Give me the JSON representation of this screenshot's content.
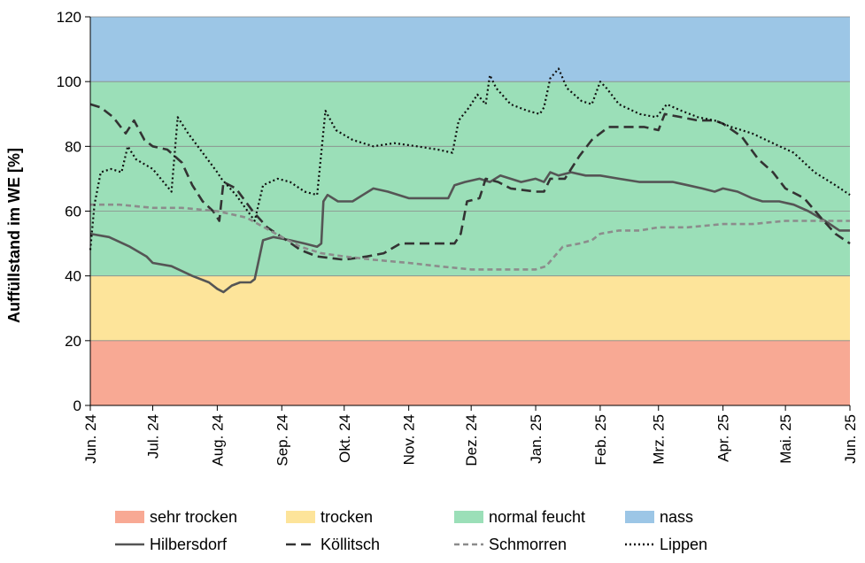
{
  "chart_data": {
    "type": "line",
    "ylabel": "Auffüllstand im WE [%]",
    "xlabel": "",
    "ylim": [
      0,
      120
    ],
    "yticks": [
      0,
      20,
      40,
      60,
      80,
      100,
      120
    ],
    "x_range": [
      "2024-06-01",
      "2025-06-01"
    ],
    "xtick_dates": [
      "2024-06-01",
      "2024-07-01",
      "2024-08-01",
      "2024-09-01",
      "2024-10-01",
      "2024-11-01",
      "2024-12-01",
      "2025-01-01",
      "2025-02-01",
      "2025-03-01",
      "2025-04-01",
      "2025-05-01",
      "2025-06-01"
    ],
    "xtick_labels": [
      "Jun. 24",
      "Jul. 24",
      "Aug. 24",
      "Sep. 24",
      "Okt. 24",
      "Nov. 24",
      "Dez. 24",
      "Jan. 25",
      "Feb. 25",
      "Mrz. 25",
      "Apr. 25",
      "Mai. 25",
      "Jun. 25"
    ],
    "bands": [
      {
        "name": "sehr trocken",
        "from": 0,
        "to": 20,
        "color": "#f8a994"
      },
      {
        "name": "trocken",
        "from": 20,
        "to": 40,
        "color": "#fde49a"
      },
      {
        "name": "normal feucht",
        "from": 40,
        "to": 100,
        "color": "#9bdfb8"
      },
      {
        "name": "nass",
        "from": 100,
        "to": 120,
        "color": "#9cc6e6"
      }
    ],
    "legend_position": "bottom",
    "series": [
      {
        "name": "Hilbersdorf",
        "color": "#555555",
        "dash": "solid",
        "points": [
          [
            "2024-06-01",
            53
          ],
          [
            "2024-06-10",
            52
          ],
          [
            "2024-06-20",
            49
          ],
          [
            "2024-06-28",
            46
          ],
          [
            "2024-07-01",
            44
          ],
          [
            "2024-07-10",
            43
          ],
          [
            "2024-07-20",
            40
          ],
          [
            "2024-07-28",
            38
          ],
          [
            "2024-08-01",
            36
          ],
          [
            "2024-08-04",
            35
          ],
          [
            "2024-08-08",
            37
          ],
          [
            "2024-08-12",
            38
          ],
          [
            "2024-08-17",
            38
          ],
          [
            "2024-08-19",
            39
          ],
          [
            "2024-08-21",
            45
          ],
          [
            "2024-08-23",
            51
          ],
          [
            "2024-08-28",
            52
          ],
          [
            "2024-09-05",
            51
          ],
          [
            "2024-09-12",
            50
          ],
          [
            "2024-09-18",
            49
          ],
          [
            "2024-09-20",
            50
          ],
          [
            "2024-09-21",
            63
          ],
          [
            "2024-09-23",
            65
          ],
          [
            "2024-09-28",
            63
          ],
          [
            "2024-10-05",
            63
          ],
          [
            "2024-10-10",
            65
          ],
          [
            "2024-10-15",
            67
          ],
          [
            "2024-10-22",
            66
          ],
          [
            "2024-11-01",
            64
          ],
          [
            "2024-11-10",
            64
          ],
          [
            "2024-11-18",
            64
          ],
          [
            "2024-11-20",
            64
          ],
          [
            "2024-11-23",
            68
          ],
          [
            "2024-11-28",
            69
          ],
          [
            "2024-12-05",
            70
          ],
          [
            "2024-12-10",
            69
          ],
          [
            "2024-12-15",
            71
          ],
          [
            "2024-12-25",
            69
          ],
          [
            "2025-01-01",
            70
          ],
          [
            "2025-01-05",
            69
          ],
          [
            "2025-01-08",
            72
          ],
          [
            "2025-01-12",
            71
          ],
          [
            "2025-01-18",
            72
          ],
          [
            "2025-01-25",
            71
          ],
          [
            "2025-02-01",
            71
          ],
          [
            "2025-02-10",
            70
          ],
          [
            "2025-02-20",
            69
          ],
          [
            "2025-03-01",
            69
          ],
          [
            "2025-03-08",
            69
          ],
          [
            "2025-03-15",
            68
          ],
          [
            "2025-03-22",
            67
          ],
          [
            "2025-03-28",
            66
          ],
          [
            "2025-04-01",
            67
          ],
          [
            "2025-04-08",
            66
          ],
          [
            "2025-04-15",
            64
          ],
          [
            "2025-04-20",
            63
          ],
          [
            "2025-04-28",
            63
          ],
          [
            "2025-05-05",
            62
          ],
          [
            "2025-05-12",
            60
          ],
          [
            "2025-05-20",
            57
          ],
          [
            "2025-05-27",
            54
          ],
          [
            "2025-06-01",
            54
          ]
        ]
      },
      {
        "name": "Köllitsch",
        "color": "#333333",
        "dash": "dashed",
        "points": [
          [
            "2024-06-01",
            93
          ],
          [
            "2024-06-06",
            92
          ],
          [
            "2024-06-12",
            89
          ],
          [
            "2024-06-18",
            84
          ],
          [
            "2024-06-22",
            88
          ],
          [
            "2024-06-27",
            82
          ],
          [
            "2024-07-01",
            80
          ],
          [
            "2024-07-08",
            79
          ],
          [
            "2024-07-15",
            75
          ],
          [
            "2024-07-20",
            68
          ],
          [
            "2024-07-25",
            63
          ],
          [
            "2024-07-30",
            60
          ],
          [
            "2024-08-02",
            57
          ],
          [
            "2024-08-04",
            69
          ],
          [
            "2024-08-10",
            67
          ],
          [
            "2024-08-18",
            60
          ],
          [
            "2024-08-25",
            55
          ],
          [
            "2024-09-01",
            52
          ],
          [
            "2024-09-10",
            48
          ],
          [
            "2024-09-18",
            46
          ],
          [
            "2024-10-01",
            45
          ],
          [
            "2024-10-12",
            46
          ],
          [
            "2024-10-20",
            47
          ],
          [
            "2024-10-28",
            50
          ],
          [
            "2024-11-05",
            50
          ],
          [
            "2024-11-15",
            50
          ],
          [
            "2024-11-23",
            50
          ],
          [
            "2024-11-26",
            53
          ],
          [
            "2024-11-29",
            63
          ],
          [
            "2024-12-05",
            64
          ],
          [
            "2024-12-08",
            70
          ],
          [
            "2024-12-14",
            69
          ],
          [
            "2024-12-20",
            67
          ],
          [
            "2025-01-01",
            66
          ],
          [
            "2025-01-05",
            66
          ],
          [
            "2025-01-08",
            70
          ],
          [
            "2025-01-15",
            70
          ],
          [
            "2025-01-22",
            77
          ],
          [
            "2025-01-28",
            82
          ],
          [
            "2025-02-05",
            86
          ],
          [
            "2025-02-15",
            86
          ],
          [
            "2025-02-22",
            86
          ],
          [
            "2025-03-01",
            85
          ],
          [
            "2025-03-04",
            90
          ],
          [
            "2025-03-12",
            89
          ],
          [
            "2025-03-20",
            88
          ],
          [
            "2025-03-28",
            88
          ],
          [
            "2025-04-01",
            87
          ],
          [
            "2025-04-10",
            83
          ],
          [
            "2025-04-18",
            76
          ],
          [
            "2025-04-25",
            72
          ],
          [
            "2025-05-01",
            67
          ],
          [
            "2025-05-10",
            64
          ],
          [
            "2025-05-18",
            58
          ],
          [
            "2025-05-25",
            53
          ],
          [
            "2025-06-01",
            50
          ]
        ]
      },
      {
        "name": "Schmorren",
        "color": "#8c8c8c",
        "dash": "dashed",
        "points": [
          [
            "2024-06-01",
            62
          ],
          [
            "2024-06-15",
            62
          ],
          [
            "2024-07-01",
            61
          ],
          [
            "2024-07-15",
            61
          ],
          [
            "2024-08-01",
            60
          ],
          [
            "2024-08-15",
            58
          ],
          [
            "2024-09-01",
            52
          ],
          [
            "2024-09-10",
            49
          ],
          [
            "2024-09-20",
            47
          ],
          [
            "2024-10-01",
            46
          ],
          [
            "2024-10-15",
            45
          ],
          [
            "2024-11-01",
            44
          ],
          [
            "2024-11-15",
            43
          ],
          [
            "2024-12-01",
            42
          ],
          [
            "2024-12-15",
            42
          ],
          [
            "2025-01-01",
            42
          ],
          [
            "2025-01-06",
            43
          ],
          [
            "2025-01-10",
            46
          ],
          [
            "2025-01-14",
            49
          ],
          [
            "2025-01-22",
            50
          ],
          [
            "2025-01-28",
            51
          ],
          [
            "2025-02-01",
            53
          ],
          [
            "2025-02-10",
            54
          ],
          [
            "2025-02-20",
            54
          ],
          [
            "2025-03-01",
            55
          ],
          [
            "2025-03-15",
            55
          ],
          [
            "2025-04-01",
            56
          ],
          [
            "2025-04-15",
            56
          ],
          [
            "2025-05-01",
            57
          ],
          [
            "2025-05-15",
            57
          ],
          [
            "2025-06-01",
            57
          ]
        ]
      },
      {
        "name": "Lippen",
        "color": "#111111",
        "dash": "dotted",
        "points": [
          [
            "2024-06-01",
            48
          ],
          [
            "2024-06-03",
            62
          ],
          [
            "2024-06-06",
            72
          ],
          [
            "2024-06-11",
            73
          ],
          [
            "2024-06-16",
            72
          ],
          [
            "2024-06-19",
            80
          ],
          [
            "2024-06-23",
            76
          ],
          [
            "2024-07-01",
            73
          ],
          [
            "2024-07-10",
            66
          ],
          [
            "2024-07-13",
            89
          ],
          [
            "2024-07-18",
            84
          ],
          [
            "2024-07-25",
            78
          ],
          [
            "2024-08-01",
            72
          ],
          [
            "2024-08-03",
            70
          ],
          [
            "2024-08-10",
            65
          ],
          [
            "2024-08-19",
            57
          ],
          [
            "2024-08-23",
            68
          ],
          [
            "2024-08-30",
            70
          ],
          [
            "2024-09-05",
            69
          ],
          [
            "2024-09-12",
            66
          ],
          [
            "2024-09-18",
            65
          ],
          [
            "2024-09-20",
            78
          ],
          [
            "2024-09-22",
            91
          ],
          [
            "2024-09-27",
            85
          ],
          [
            "2024-10-05",
            82
          ],
          [
            "2024-10-15",
            80
          ],
          [
            "2024-10-25",
            81
          ],
          [
            "2024-11-05",
            80
          ],
          [
            "2024-11-15",
            79
          ],
          [
            "2024-11-22",
            78
          ],
          [
            "2024-11-25",
            88
          ],
          [
            "2024-11-30",
            92
          ],
          [
            "2024-12-04",
            96
          ],
          [
            "2024-12-08",
            93
          ],
          [
            "2024-12-10",
            102
          ],
          [
            "2024-12-13",
            98
          ],
          [
            "2024-12-20",
            93
          ],
          [
            "2024-12-28",
            91
          ],
          [
            "2025-01-03",
            90
          ],
          [
            "2025-01-05",
            92
          ],
          [
            "2025-01-08",
            101
          ],
          [
            "2025-01-12",
            104
          ],
          [
            "2025-01-16",
            98
          ],
          [
            "2025-01-23",
            94
          ],
          [
            "2025-01-28",
            93
          ],
          [
            "2025-02-01",
            100
          ],
          [
            "2025-02-04",
            98
          ],
          [
            "2025-02-10",
            93
          ],
          [
            "2025-02-20",
            90
          ],
          [
            "2025-02-28",
            89
          ],
          [
            "2025-03-05",
            93
          ],
          [
            "2025-03-12",
            91
          ],
          [
            "2025-03-20",
            89
          ],
          [
            "2025-03-28",
            88
          ],
          [
            "2025-04-05",
            86
          ],
          [
            "2025-04-15",
            84
          ],
          [
            "2025-04-25",
            81
          ],
          [
            "2025-05-05",
            78
          ],
          [
            "2025-05-15",
            72
          ],
          [
            "2025-05-25",
            68
          ],
          [
            "2025-06-01",
            65
          ]
        ]
      }
    ]
  }
}
